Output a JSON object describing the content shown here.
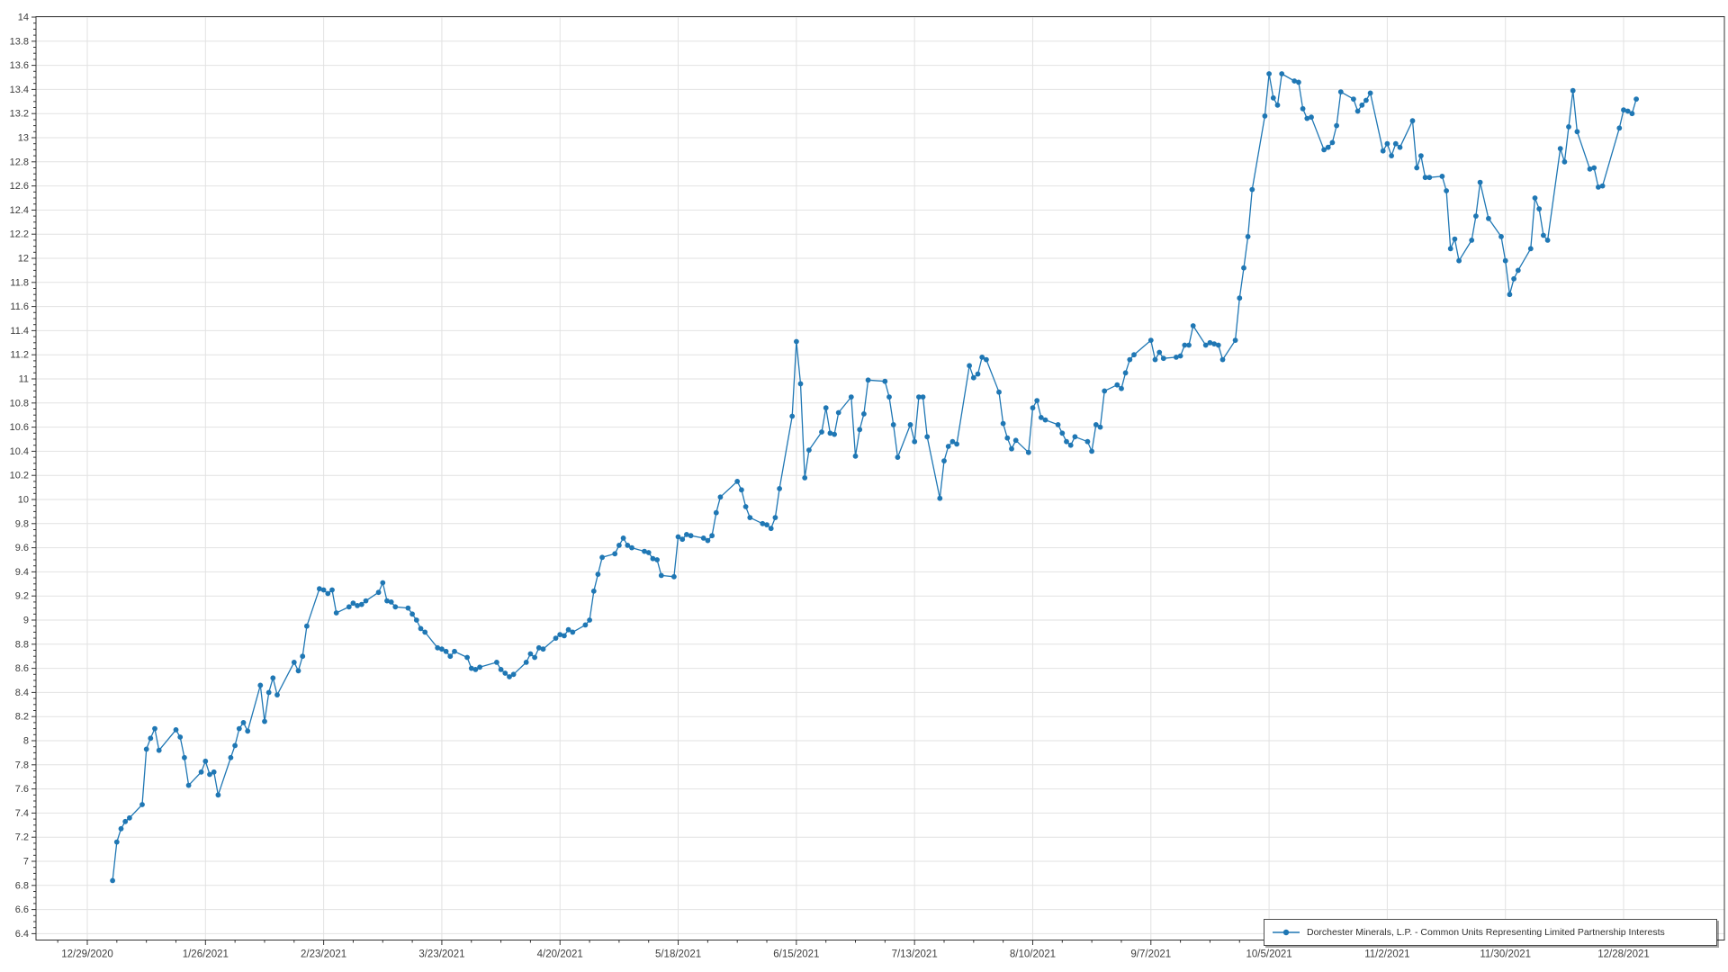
{
  "chart_data": {
    "type": "line",
    "title": "",
    "legend": {
      "position": "bottom-right",
      "label": "Dorchester Minerals, L.P. - Common Units Representing Limited Partnership Interests"
    },
    "colors": {
      "line": "#1f77b4",
      "marker": "#1f77b4",
      "grid": "#e2e2e2",
      "axis": "#333333",
      "tick_label": "#3d3d3d",
      "background": "#ffffff"
    },
    "y_axis": {
      "min": 6.4,
      "max": 14,
      "major_step": 0.2,
      "minor_step": 0.05,
      "grid": true
    },
    "x_axis": {
      "epoch": "2020-12-29",
      "tick_interval_days": 28,
      "grid": true,
      "ticks": [
        {
          "label": "12/29/2020",
          "date": "2020-12-29"
        },
        {
          "label": "1/26/2021",
          "date": "2021-01-26"
        },
        {
          "label": "2/23/2021",
          "date": "2021-02-23"
        },
        {
          "label": "3/23/2021",
          "date": "2021-03-23"
        },
        {
          "label": "4/20/2021",
          "date": "2021-04-20"
        },
        {
          "label": "5/18/2021",
          "date": "2021-05-18"
        },
        {
          "label": "6/15/2021",
          "date": "2021-06-15"
        },
        {
          "label": "7/13/2021",
          "date": "2021-07-13"
        },
        {
          "label": "8/10/2021",
          "date": "2021-08-10"
        },
        {
          "label": "9/7/2021",
          "date": "2021-09-07"
        },
        {
          "label": "10/5/2021",
          "date": "2021-10-05"
        },
        {
          "label": "11/2/2021",
          "date": "2021-11-02"
        },
        {
          "label": "11/30/2021",
          "date": "2021-11-30"
        },
        {
          "label": "12/28/2021",
          "date": "2021-12-28"
        }
      ]
    },
    "series": [
      {
        "name": "Dorchester Minerals, L.P. - Common Units Representing Limited Partnership Interests",
        "points": [
          [
            "2021-01-04",
            6.84
          ],
          [
            "2021-01-05",
            7.16
          ],
          [
            "2021-01-06",
            7.27
          ],
          [
            "2021-01-07",
            7.33
          ],
          [
            "2021-01-08",
            7.36
          ],
          [
            "2021-01-11",
            7.47
          ],
          [
            "2021-01-12",
            7.93
          ],
          [
            "2021-01-13",
            8.02
          ],
          [
            "2021-01-14",
            8.1
          ],
          [
            "2021-01-15",
            7.92
          ],
          [
            "2021-01-19",
            8.09
          ],
          [
            "2021-01-20",
            8.03
          ],
          [
            "2021-01-21",
            7.86
          ],
          [
            "2021-01-22",
            7.63
          ],
          [
            "2021-01-25",
            7.74
          ],
          [
            "2021-01-26",
            7.83
          ],
          [
            "2021-01-27",
            7.72
          ],
          [
            "2021-01-28",
            7.74
          ],
          [
            "2021-01-29",
            7.55
          ],
          [
            "2021-02-01",
            7.86
          ],
          [
            "2021-02-02",
            7.96
          ],
          [
            "2021-02-03",
            8.1
          ],
          [
            "2021-02-04",
            8.15
          ],
          [
            "2021-02-05",
            8.08
          ],
          [
            "2021-02-08",
            8.46
          ],
          [
            "2021-02-09",
            8.16
          ],
          [
            "2021-02-10",
            8.4
          ],
          [
            "2021-02-11",
            8.52
          ],
          [
            "2021-02-12",
            8.38
          ],
          [
            "2021-02-16",
            8.65
          ],
          [
            "2021-02-17",
            8.58
          ],
          [
            "2021-02-18",
            8.7
          ],
          [
            "2021-02-19",
            8.95
          ],
          [
            "2021-02-22",
            9.26
          ],
          [
            "2021-02-23",
            9.25
          ],
          [
            "2021-02-24",
            9.22
          ],
          [
            "2021-02-25",
            9.25
          ],
          [
            "2021-02-26",
            9.06
          ],
          [
            "2021-03-01",
            9.11
          ],
          [
            "2021-03-02",
            9.14
          ],
          [
            "2021-03-03",
            9.12
          ],
          [
            "2021-03-04",
            9.13
          ],
          [
            "2021-03-05",
            9.16
          ],
          [
            "2021-03-08",
            9.23
          ],
          [
            "2021-03-09",
            9.31
          ],
          [
            "2021-03-10",
            9.16
          ],
          [
            "2021-03-11",
            9.15
          ],
          [
            "2021-03-12",
            9.11
          ],
          [
            "2021-03-15",
            9.1
          ],
          [
            "2021-03-16",
            9.05
          ],
          [
            "2021-03-17",
            9.0
          ],
          [
            "2021-03-18",
            8.93
          ],
          [
            "2021-03-19",
            8.9
          ],
          [
            "2021-03-22",
            8.77
          ],
          [
            "2021-03-23",
            8.76
          ],
          [
            "2021-03-24",
            8.74
          ],
          [
            "2021-03-25",
            8.7
          ],
          [
            "2021-03-26",
            8.74
          ],
          [
            "2021-03-29",
            8.69
          ],
          [
            "2021-03-30",
            8.6
          ],
          [
            "2021-03-31",
            8.59
          ],
          [
            "2021-04-01",
            8.61
          ],
          [
            "2021-04-05",
            8.65
          ],
          [
            "2021-04-06",
            8.59
          ],
          [
            "2021-04-07",
            8.56
          ],
          [
            "2021-04-08",
            8.53
          ],
          [
            "2021-04-09",
            8.55
          ],
          [
            "2021-04-12",
            8.65
          ],
          [
            "2021-04-13",
            8.72
          ],
          [
            "2021-04-14",
            8.69
          ],
          [
            "2021-04-15",
            8.77
          ],
          [
            "2021-04-16",
            8.76
          ],
          [
            "2021-04-19",
            8.85
          ],
          [
            "2021-04-20",
            8.88
          ],
          [
            "2021-04-21",
            8.87
          ],
          [
            "2021-04-22",
            8.92
          ],
          [
            "2021-04-23",
            8.9
          ],
          [
            "2021-04-26",
            8.96
          ],
          [
            "2021-04-27",
            9.0
          ],
          [
            "2021-04-28",
            9.24
          ],
          [
            "2021-04-29",
            9.38
          ],
          [
            "2021-04-30",
            9.52
          ],
          [
            "2021-05-03",
            9.55
          ],
          [
            "2021-05-04",
            9.62
          ],
          [
            "2021-05-05",
            9.68
          ],
          [
            "2021-05-06",
            9.62
          ],
          [
            "2021-05-07",
            9.6
          ],
          [
            "2021-05-10",
            9.57
          ],
          [
            "2021-05-11",
            9.56
          ],
          [
            "2021-05-12",
            9.51
          ],
          [
            "2021-05-13",
            9.5
          ],
          [
            "2021-05-14",
            9.37
          ],
          [
            "2021-05-17",
            9.36
          ],
          [
            "2021-05-18",
            9.69
          ],
          [
            "2021-05-19",
            9.67
          ],
          [
            "2021-05-20",
            9.71
          ],
          [
            "2021-05-21",
            9.7
          ],
          [
            "2021-05-24",
            9.68
          ],
          [
            "2021-05-25",
            9.66
          ],
          [
            "2021-05-26",
            9.7
          ],
          [
            "2021-05-27",
            9.89
          ],
          [
            "2021-05-28",
            10.02
          ],
          [
            "2021-06-01",
            10.15
          ],
          [
            "2021-06-02",
            10.08
          ],
          [
            "2021-06-03",
            9.94
          ],
          [
            "2021-06-04",
            9.85
          ],
          [
            "2021-06-07",
            9.8
          ],
          [
            "2021-06-08",
            9.79
          ],
          [
            "2021-06-09",
            9.76
          ],
          [
            "2021-06-10",
            9.85
          ],
          [
            "2021-06-11",
            10.09
          ],
          [
            "2021-06-14",
            10.69
          ],
          [
            "2021-06-15",
            11.31
          ],
          [
            "2021-06-16",
            10.96
          ],
          [
            "2021-06-17",
            10.18
          ],
          [
            "2021-06-18",
            10.41
          ],
          [
            "2021-06-21",
            10.56
          ],
          [
            "2021-06-22",
            10.76
          ],
          [
            "2021-06-23",
            10.55
          ],
          [
            "2021-06-24",
            10.54
          ],
          [
            "2021-06-25",
            10.72
          ],
          [
            "2021-06-28",
            10.85
          ],
          [
            "2021-06-29",
            10.36
          ],
          [
            "2021-06-30",
            10.58
          ],
          [
            "2021-07-01",
            10.71
          ],
          [
            "2021-07-02",
            10.99
          ],
          [
            "2021-07-06",
            10.98
          ],
          [
            "2021-07-07",
            10.85
          ],
          [
            "2021-07-08",
            10.62
          ],
          [
            "2021-07-09",
            10.35
          ],
          [
            "2021-07-12",
            10.62
          ],
          [
            "2021-07-13",
            10.48
          ],
          [
            "2021-07-14",
            10.85
          ],
          [
            "2021-07-15",
            10.85
          ],
          [
            "2021-07-16",
            10.52
          ],
          [
            "2021-07-19",
            10.01
          ],
          [
            "2021-07-20",
            10.32
          ],
          [
            "2021-07-21",
            10.44
          ],
          [
            "2021-07-22",
            10.48
          ],
          [
            "2021-07-23",
            10.46
          ],
          [
            "2021-07-26",
            11.11
          ],
          [
            "2021-07-27",
            11.01
          ],
          [
            "2021-07-28",
            11.04
          ],
          [
            "2021-07-29",
            11.18
          ],
          [
            "2021-07-30",
            11.16
          ],
          [
            "2021-08-02",
            10.89
          ],
          [
            "2021-08-03",
            10.63
          ],
          [
            "2021-08-04",
            10.51
          ],
          [
            "2021-08-05",
            10.42
          ],
          [
            "2021-08-06",
            10.49
          ],
          [
            "2021-08-09",
            10.39
          ],
          [
            "2021-08-10",
            10.76
          ],
          [
            "2021-08-11",
            10.82
          ],
          [
            "2021-08-12",
            10.68
          ],
          [
            "2021-08-13",
            10.66
          ],
          [
            "2021-08-16",
            10.62
          ],
          [
            "2021-08-17",
            10.55
          ],
          [
            "2021-08-18",
            10.48
          ],
          [
            "2021-08-19",
            10.45
          ],
          [
            "2021-08-20",
            10.52
          ],
          [
            "2021-08-23",
            10.48
          ],
          [
            "2021-08-24",
            10.4
          ],
          [
            "2021-08-25",
            10.62
          ],
          [
            "2021-08-26",
            10.6
          ],
          [
            "2021-08-27",
            10.9
          ],
          [
            "2021-08-30",
            10.95
          ],
          [
            "2021-08-31",
            10.92
          ],
          [
            "2021-09-01",
            11.05
          ],
          [
            "2021-09-02",
            11.16
          ],
          [
            "2021-09-03",
            11.2
          ],
          [
            "2021-09-07",
            11.32
          ],
          [
            "2021-09-08",
            11.16
          ],
          [
            "2021-09-09",
            11.22
          ],
          [
            "2021-09-10",
            11.17
          ],
          [
            "2021-09-13",
            11.18
          ],
          [
            "2021-09-14",
            11.19
          ],
          [
            "2021-09-15",
            11.28
          ],
          [
            "2021-09-16",
            11.28
          ],
          [
            "2021-09-17",
            11.44
          ],
          [
            "2021-09-20",
            11.28
          ],
          [
            "2021-09-21",
            11.3
          ],
          [
            "2021-09-22",
            11.29
          ],
          [
            "2021-09-23",
            11.28
          ],
          [
            "2021-09-24",
            11.16
          ],
          [
            "2021-09-27",
            11.32
          ],
          [
            "2021-09-28",
            11.67
          ],
          [
            "2021-09-29",
            11.92
          ],
          [
            "2021-09-30",
            12.18
          ],
          [
            "2021-10-01",
            12.57
          ],
          [
            "2021-10-04",
            13.18
          ],
          [
            "2021-10-05",
            13.53
          ],
          [
            "2021-10-06",
            13.33
          ],
          [
            "2021-10-07",
            13.27
          ],
          [
            "2021-10-08",
            13.53
          ],
          [
            "2021-10-11",
            13.47
          ],
          [
            "2021-10-12",
            13.46
          ],
          [
            "2021-10-13",
            13.24
          ],
          [
            "2021-10-14",
            13.16
          ],
          [
            "2021-10-15",
            13.17
          ],
          [
            "2021-10-18",
            12.9
          ],
          [
            "2021-10-19",
            12.92
          ],
          [
            "2021-10-20",
            12.96
          ],
          [
            "2021-10-21",
            13.1
          ],
          [
            "2021-10-22",
            13.38
          ],
          [
            "2021-10-25",
            13.32
          ],
          [
            "2021-10-26",
            13.22
          ],
          [
            "2021-10-27",
            13.27
          ],
          [
            "2021-10-28",
            13.31
          ],
          [
            "2021-10-29",
            13.37
          ],
          [
            "2021-11-01",
            12.89
          ],
          [
            "2021-11-02",
            12.95
          ],
          [
            "2021-11-03",
            12.85
          ],
          [
            "2021-11-04",
            12.95
          ],
          [
            "2021-11-05",
            12.92
          ],
          [
            "2021-11-08",
            13.14
          ],
          [
            "2021-11-09",
            12.75
          ],
          [
            "2021-11-10",
            12.85
          ],
          [
            "2021-11-11",
            12.67
          ],
          [
            "2021-11-12",
            12.67
          ],
          [
            "2021-11-15",
            12.68
          ],
          [
            "2021-11-16",
            12.56
          ],
          [
            "2021-11-17",
            12.08
          ],
          [
            "2021-11-18",
            12.16
          ],
          [
            "2021-11-19",
            11.98
          ],
          [
            "2021-11-22",
            12.15
          ],
          [
            "2021-11-23",
            12.35
          ],
          [
            "2021-11-24",
            12.63
          ],
          [
            "2021-11-26",
            12.33
          ],
          [
            "2021-11-29",
            12.18
          ],
          [
            "2021-11-30",
            11.98
          ],
          [
            "2021-12-01",
            11.7
          ],
          [
            "2021-12-02",
            11.83
          ],
          [
            "2021-12-03",
            11.9
          ],
          [
            "2021-12-06",
            12.08
          ],
          [
            "2021-12-07",
            12.5
          ],
          [
            "2021-12-08",
            12.41
          ],
          [
            "2021-12-09",
            12.19
          ],
          [
            "2021-12-10",
            12.15
          ],
          [
            "2021-12-13",
            12.91
          ],
          [
            "2021-12-14",
            12.8
          ],
          [
            "2021-12-15",
            13.09
          ],
          [
            "2021-12-16",
            13.39
          ],
          [
            "2021-12-17",
            13.05
          ],
          [
            "2021-12-20",
            12.74
          ],
          [
            "2021-12-21",
            12.75
          ],
          [
            "2021-12-22",
            12.59
          ],
          [
            "2021-12-23",
            12.6
          ],
          [
            "2021-12-27",
            13.08
          ],
          [
            "2021-12-28",
            13.23
          ],
          [
            "2021-12-29",
            13.22
          ],
          [
            "2021-12-30",
            13.2
          ],
          [
            "2021-12-31",
            13.32
          ]
        ]
      }
    ]
  }
}
